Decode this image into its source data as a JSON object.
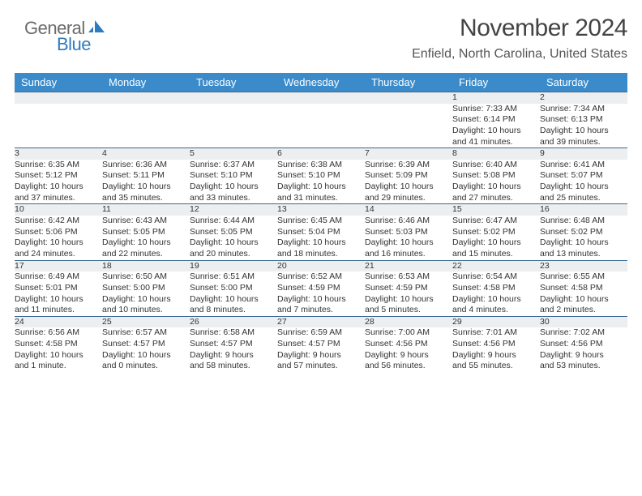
{
  "logo": {
    "word1": "General",
    "word2": "Blue",
    "text_color": "#6b6b6b",
    "accent_color": "#2f7bbf"
  },
  "header": {
    "title": "November 2024",
    "location": "Enfield, North Carolina, United States"
  },
  "colors": {
    "header_bg": "#3b8bca",
    "header_text": "#ffffff",
    "daynum_bg": "#eceef0",
    "row_border": "#3b6a93",
    "body_text": "#333333"
  },
  "week_days": [
    "Sunday",
    "Monday",
    "Tuesday",
    "Wednesday",
    "Thursday",
    "Friday",
    "Saturday"
  ],
  "weeks": [
    [
      {
        "day": "",
        "lines": []
      },
      {
        "day": "",
        "lines": []
      },
      {
        "day": "",
        "lines": []
      },
      {
        "day": "",
        "lines": []
      },
      {
        "day": "",
        "lines": []
      },
      {
        "day": "1",
        "lines": [
          "Sunrise: 7:33 AM",
          "Sunset: 6:14 PM",
          "Daylight: 10 hours",
          "and 41 minutes."
        ]
      },
      {
        "day": "2",
        "lines": [
          "Sunrise: 7:34 AM",
          "Sunset: 6:13 PM",
          "Daylight: 10 hours",
          "and 39 minutes."
        ]
      }
    ],
    [
      {
        "day": "3",
        "lines": [
          "Sunrise: 6:35 AM",
          "Sunset: 5:12 PM",
          "Daylight: 10 hours",
          "and 37 minutes."
        ]
      },
      {
        "day": "4",
        "lines": [
          "Sunrise: 6:36 AM",
          "Sunset: 5:11 PM",
          "Daylight: 10 hours",
          "and 35 minutes."
        ]
      },
      {
        "day": "5",
        "lines": [
          "Sunrise: 6:37 AM",
          "Sunset: 5:10 PM",
          "Daylight: 10 hours",
          "and 33 minutes."
        ]
      },
      {
        "day": "6",
        "lines": [
          "Sunrise: 6:38 AM",
          "Sunset: 5:10 PM",
          "Daylight: 10 hours",
          "and 31 minutes."
        ]
      },
      {
        "day": "7",
        "lines": [
          "Sunrise: 6:39 AM",
          "Sunset: 5:09 PM",
          "Daylight: 10 hours",
          "and 29 minutes."
        ]
      },
      {
        "day": "8",
        "lines": [
          "Sunrise: 6:40 AM",
          "Sunset: 5:08 PM",
          "Daylight: 10 hours",
          "and 27 minutes."
        ]
      },
      {
        "day": "9",
        "lines": [
          "Sunrise: 6:41 AM",
          "Sunset: 5:07 PM",
          "Daylight: 10 hours",
          "and 25 minutes."
        ]
      }
    ],
    [
      {
        "day": "10",
        "lines": [
          "Sunrise: 6:42 AM",
          "Sunset: 5:06 PM",
          "Daylight: 10 hours",
          "and 24 minutes."
        ]
      },
      {
        "day": "11",
        "lines": [
          "Sunrise: 6:43 AM",
          "Sunset: 5:05 PM",
          "Daylight: 10 hours",
          "and 22 minutes."
        ]
      },
      {
        "day": "12",
        "lines": [
          "Sunrise: 6:44 AM",
          "Sunset: 5:05 PM",
          "Daylight: 10 hours",
          "and 20 minutes."
        ]
      },
      {
        "day": "13",
        "lines": [
          "Sunrise: 6:45 AM",
          "Sunset: 5:04 PM",
          "Daylight: 10 hours",
          "and 18 minutes."
        ]
      },
      {
        "day": "14",
        "lines": [
          "Sunrise: 6:46 AM",
          "Sunset: 5:03 PM",
          "Daylight: 10 hours",
          "and 16 minutes."
        ]
      },
      {
        "day": "15",
        "lines": [
          "Sunrise: 6:47 AM",
          "Sunset: 5:02 PM",
          "Daylight: 10 hours",
          "and 15 minutes."
        ]
      },
      {
        "day": "16",
        "lines": [
          "Sunrise: 6:48 AM",
          "Sunset: 5:02 PM",
          "Daylight: 10 hours",
          "and 13 minutes."
        ]
      }
    ],
    [
      {
        "day": "17",
        "lines": [
          "Sunrise: 6:49 AM",
          "Sunset: 5:01 PM",
          "Daylight: 10 hours",
          "and 11 minutes."
        ]
      },
      {
        "day": "18",
        "lines": [
          "Sunrise: 6:50 AM",
          "Sunset: 5:00 PM",
          "Daylight: 10 hours",
          "and 10 minutes."
        ]
      },
      {
        "day": "19",
        "lines": [
          "Sunrise: 6:51 AM",
          "Sunset: 5:00 PM",
          "Daylight: 10 hours",
          "and 8 minutes."
        ]
      },
      {
        "day": "20",
        "lines": [
          "Sunrise: 6:52 AM",
          "Sunset: 4:59 PM",
          "Daylight: 10 hours",
          "and 7 minutes."
        ]
      },
      {
        "day": "21",
        "lines": [
          "Sunrise: 6:53 AM",
          "Sunset: 4:59 PM",
          "Daylight: 10 hours",
          "and 5 minutes."
        ]
      },
      {
        "day": "22",
        "lines": [
          "Sunrise: 6:54 AM",
          "Sunset: 4:58 PM",
          "Daylight: 10 hours",
          "and 4 minutes."
        ]
      },
      {
        "day": "23",
        "lines": [
          "Sunrise: 6:55 AM",
          "Sunset: 4:58 PM",
          "Daylight: 10 hours",
          "and 2 minutes."
        ]
      }
    ],
    [
      {
        "day": "24",
        "lines": [
          "Sunrise: 6:56 AM",
          "Sunset: 4:58 PM",
          "Daylight: 10 hours",
          "and 1 minute."
        ]
      },
      {
        "day": "25",
        "lines": [
          "Sunrise: 6:57 AM",
          "Sunset: 4:57 PM",
          "Daylight: 10 hours",
          "and 0 minutes."
        ]
      },
      {
        "day": "26",
        "lines": [
          "Sunrise: 6:58 AM",
          "Sunset: 4:57 PM",
          "Daylight: 9 hours",
          "and 58 minutes."
        ]
      },
      {
        "day": "27",
        "lines": [
          "Sunrise: 6:59 AM",
          "Sunset: 4:57 PM",
          "Daylight: 9 hours",
          "and 57 minutes."
        ]
      },
      {
        "day": "28",
        "lines": [
          "Sunrise: 7:00 AM",
          "Sunset: 4:56 PM",
          "Daylight: 9 hours",
          "and 56 minutes."
        ]
      },
      {
        "day": "29",
        "lines": [
          "Sunrise: 7:01 AM",
          "Sunset: 4:56 PM",
          "Daylight: 9 hours",
          "and 55 minutes."
        ]
      },
      {
        "day": "30",
        "lines": [
          "Sunrise: 7:02 AM",
          "Sunset: 4:56 PM",
          "Daylight: 9 hours",
          "and 53 minutes."
        ]
      }
    ]
  ]
}
